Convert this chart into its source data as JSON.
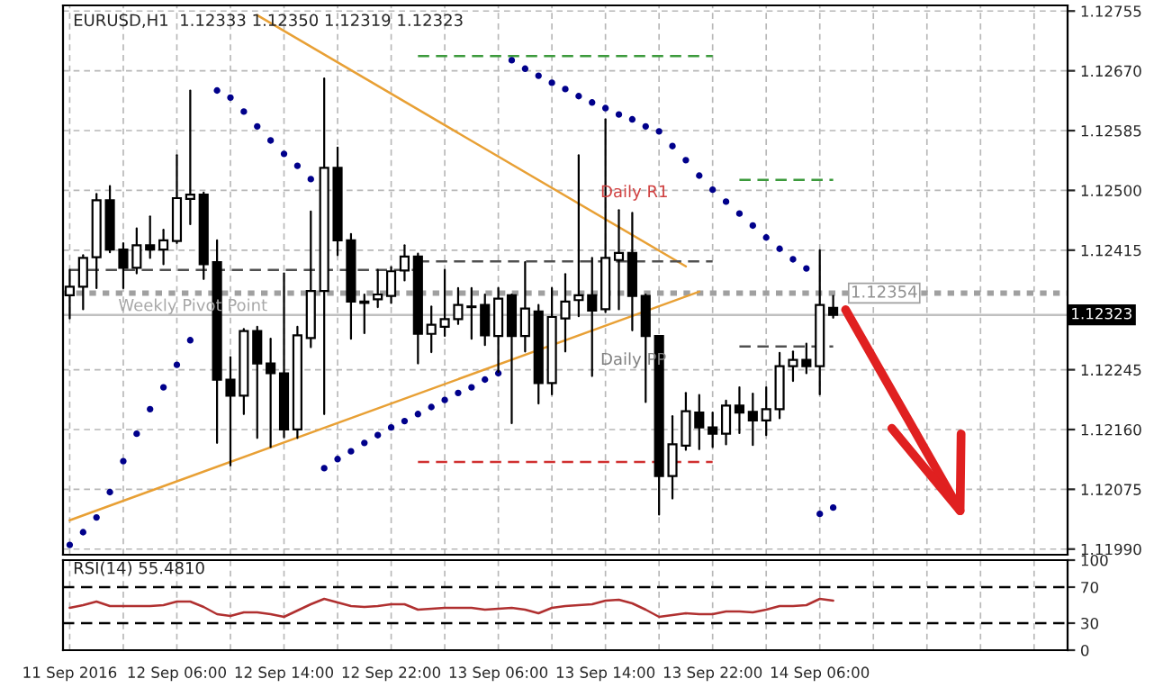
{
  "chart_data": [
    {
      "type": "candlestick",
      "title": "EURUSD,H1  1.12333 1.12350 1.12319 1.12323",
      "categories": [
        null,
        null,
        null,
        null,
        null,
        null,
        null,
        null,
        null,
        null,
        null,
        null,
        null,
        null,
        null,
        null,
        null,
        null,
        null,
        null,
        null,
        null,
        null,
        null,
        null,
        null,
        null,
        null,
        null,
        null,
        null,
        null,
        null,
        null,
        null,
        null,
        null,
        null,
        null,
        null,
        null,
        null,
        null,
        null,
        null,
        null,
        null,
        null,
        null,
        null,
        null,
        null,
        null,
        null,
        null,
        null,
        null,
        null,
        null,
        null,
        null,
        null,
        null,
        null,
        null,
        null,
        null,
        null,
        null,
        null,
        null,
        null,
        null,
        null,
        null
      ],
      "ohlc": [
        [
          1.12351,
          1.12387,
          1.12318,
          1.12363
        ],
        [
          1.12363,
          1.12408,
          1.12331,
          1.12404
        ],
        [
          1.12405,
          1.12495,
          1.12361,
          1.12486
        ],
        [
          1.12486,
          1.12506,
          1.12412,
          1.12416
        ],
        [
          1.12416,
          1.12425,
          1.12361,
          1.1239
        ],
        [
          1.1239,
          1.12446,
          1.12382,
          1.12422
        ],
        [
          1.12422,
          1.12463,
          1.12404,
          1.12416
        ],
        [
          1.12416,
          1.12444,
          1.12395,
          1.12429
        ],
        [
          1.12428,
          1.1255,
          1.12425,
          1.12489
        ],
        [
          1.12488,
          1.12642,
          1.12452,
          1.12494
        ],
        [
          1.12494,
          1.12497,
          1.12374,
          1.12395
        ],
        [
          1.12398,
          1.12429,
          1.12141,
          1.12231
        ],
        [
          1.12231,
          1.12263,
          1.12109,
          1.12208
        ],
        [
          1.12208,
          1.12303,
          1.12182,
          1.123
        ],
        [
          1.123,
          1.12306,
          1.12148,
          1.12254
        ],
        [
          1.12254,
          1.12289,
          1.12135,
          1.1224
        ],
        [
          1.1224,
          1.12382,
          1.12149,
          1.1216
        ],
        [
          1.1216,
          1.12306,
          1.12148,
          1.12294
        ],
        [
          1.1229,
          1.1247,
          1.12277,
          1.12357
        ],
        [
          1.12357,
          1.12659,
          1.12182,
          1.12532
        ],
        [
          1.12532,
          1.12561,
          1.12408,
          1.12429
        ],
        [
          1.12429,
          1.12438,
          1.12289,
          1.12342
        ],
        [
          1.12342,
          1.12352,
          1.12297,
          1.1234
        ],
        [
          1.12345,
          1.12387,
          1.12334,
          1.12352
        ],
        [
          1.1235,
          1.12391,
          1.1234,
          1.12385
        ],
        [
          1.12386,
          1.12422,
          1.12372,
          1.12406
        ],
        [
          1.12406,
          1.1241,
          1.12254,
          1.12296
        ],
        [
          1.12296,
          1.12335,
          1.1227,
          1.12309
        ],
        [
          1.12306,
          1.12387,
          1.12293,
          1.12317
        ],
        [
          1.12317,
          1.12361,
          1.1231,
          1.12337
        ],
        [
          1.12335,
          1.12361,
          1.12289,
          1.12334
        ],
        [
          1.12337,
          1.12352,
          1.1228,
          1.12294
        ],
        [
          1.12293,
          1.12361,
          1.12242,
          1.12346
        ],
        [
          1.12351,
          1.12352,
          1.12169,
          1.12293
        ],
        [
          1.12293,
          1.12398,
          1.12271,
          1.12332
        ],
        [
          1.12328,
          1.12337,
          1.12197,
          1.12226
        ],
        [
          1.12226,
          1.12361,
          1.1221,
          1.1232
        ],
        [
          1.12318,
          1.12381,
          1.12271,
          1.12342
        ],
        [
          1.12344,
          1.1255,
          1.12321,
          1.12351
        ],
        [
          1.12351,
          1.12404,
          1.12236,
          1.12329
        ],
        [
          1.12331,
          1.12601,
          1.12327,
          1.12404
        ],
        [
          1.12401,
          1.12472,
          1.12331,
          1.12411
        ],
        [
          1.12411,
          1.12468,
          1.12301,
          1.1235
        ],
        [
          1.1235,
          1.12352,
          1.12199,
          1.12293
        ],
        [
          1.12293,
          1.12293,
          1.12039,
          1.12094
        ],
        [
          1.12094,
          1.12179,
          1.12062,
          1.12139
        ],
        [
          1.12137,
          1.12212,
          1.12131,
          1.12186
        ],
        [
          1.12184,
          1.12209,
          1.12132,
          1.12163
        ],
        [
          1.12163,
          1.12184,
          1.12135,
          1.12154
        ],
        [
          1.12154,
          1.12201,
          1.12139,
          1.12194
        ],
        [
          1.12194,
          1.1222,
          1.12155,
          1.12184
        ],
        [
          1.12185,
          1.12211,
          1.12138,
          1.12173
        ],
        [
          1.12173,
          1.1222,
          1.12152,
          1.12189
        ],
        [
          1.12189,
          1.12269,
          1.12176,
          1.1225
        ],
        [
          1.1225,
          1.12271,
          1.12229,
          1.12259
        ],
        [
          1.12259,
          1.12282,
          1.1224,
          1.1225
        ],
        [
          1.1225,
          1.12415,
          1.1221,
          1.12337
        ],
        [
          1.12333,
          1.1235,
          1.12319,
          1.12323
        ],
        null,
        null,
        null,
        null,
        null,
        null,
        null,
        null,
        null,
        null,
        null,
        null,
        null,
        null,
        null,
        null,
        null
      ],
      "series": [
        {
          "type": "scatter",
          "color": "#00008b",
          "marker": "circle",
          "values": [
            1.11996,
            1.12014,
            1.12035,
            1.12071,
            1.12115,
            1.12154,
            1.12189,
            1.1222,
            1.12252,
            1.12287,
            null,
            1.12642,
            1.12632,
            1.12612,
            1.12591,
            1.12571,
            1.12552,
            1.12535,
            1.12516,
            1.12105,
            1.12118,
            1.12129,
            1.12141,
            1.12152,
            1.12163,
            1.12172,
            1.12182,
            1.12192,
            1.12202,
            1.12212,
            1.1222,
            1.12231,
            1.1224,
            1.12685,
            1.12673,
            1.12663,
            1.12653,
            1.12644,
            1.12634,
            1.12625,
            1.12617,
            1.12608,
            1.12601,
            1.12591,
            1.12584,
            1.12563,
            1.12543,
            1.12521,
            1.12501,
            1.12484,
            1.12467,
            1.1245,
            1.12433,
            1.12417,
            1.12402,
            1.12389,
            1.1204,
            1.12049,
            null,
            null,
            null,
            null,
            null,
            null,
            null,
            null,
            null,
            null,
            null,
            null,
            null,
            null,
            null,
            null,
            null
          ]
        },
        {
          "type": "line",
          "color": "#e8a035",
          "line_style": "solid",
          "values": [
            null,
            null,
            null,
            null,
            null,
            null,
            null,
            null,
            null,
            null,
            null,
            null,
            null,
            null,
            1.12749,
            null,
            null,
            null,
            null,
            null,
            null,
            null,
            null,
            null,
            null,
            null,
            null,
            null,
            null,
            null,
            null,
            null,
            null,
            null,
            null,
            null,
            null,
            null,
            null,
            null,
            null,
            null,
            null,
            null,
            null,
            null,
            1.12392,
            null,
            null,
            null,
            null,
            null,
            null,
            null,
            null,
            null,
            null,
            null,
            null,
            null,
            null,
            null,
            null,
            null,
            null,
            null,
            null,
            null,
            null,
            null,
            null,
            null,
            null,
            null,
            null
          ]
        },
        {
          "type": "line",
          "color": "#e8a035",
          "line_style": "solid",
          "values": [
            1.12031,
            null,
            null,
            null,
            null,
            null,
            null,
            null,
            null,
            null,
            null,
            null,
            null,
            null,
            null,
            null,
            null,
            null,
            null,
            null,
            null,
            null,
            null,
            null,
            null,
            null,
            null,
            null,
            null,
            null,
            null,
            null,
            null,
            null,
            null,
            null,
            null,
            null,
            null,
            null,
            null,
            null,
            null,
            null,
            null,
            null,
            null,
            1.12356,
            null,
            null,
            null,
            null,
            null,
            null,
            null,
            null,
            null,
            null,
            null,
            null,
            null,
            null,
            null,
            null,
            null,
            null,
            null,
            null,
            null,
            null,
            null,
            null,
            null,
            null,
            null
          ]
        },
        {
          "type": "line",
          "color": "#505050",
          "line_style": "dashed",
          "values": [
            1.12387,
            null,
            null,
            null,
            null,
            null,
            null,
            null,
            null,
            null,
            null,
            null,
            null,
            null,
            null,
            null,
            null,
            null,
            null,
            null,
            null,
            null,
            null,
            null,
            null,
            null,
            1.12387,
            null,
            null,
            null,
            null,
            null,
            null,
            null,
            null,
            null,
            null,
            null,
            null,
            null,
            null,
            null,
            null,
            null,
            null,
            null,
            null,
            null,
            null,
            null,
            null,
            null,
            null,
            null,
            null,
            null,
            null,
            null,
            null,
            null,
            null,
            null,
            null,
            null,
            null,
            null,
            null,
            null,
            null,
            null,
            null,
            null,
            null,
            null,
            null
          ]
        },
        {
          "type": "line",
          "color": "#505050",
          "line_style": "dashed",
          "values": [
            null,
            null,
            null,
            null,
            null,
            null,
            null,
            null,
            null,
            null,
            null,
            null,
            null,
            null,
            null,
            null,
            null,
            null,
            null,
            null,
            null,
            null,
            null,
            null,
            null,
            null,
            1.12399,
            null,
            null,
            null,
            null,
            null,
            null,
            null,
            null,
            null,
            null,
            null,
            null,
            null,
            null,
            null,
            null,
            null,
            null,
            null,
            null,
            null,
            1.12399,
            null,
            null,
            null,
            null,
            null,
            null,
            null,
            null,
            null,
            null,
            null,
            null,
            null,
            null,
            null,
            null,
            null,
            null,
            null,
            null,
            null,
            null,
            null,
            null,
            null,
            null
          ]
        },
        {
          "type": "line",
          "color": "#3c9a3c",
          "line_style": "dashed",
          "values": [
            null,
            null,
            null,
            null,
            null,
            null,
            null,
            null,
            null,
            null,
            null,
            null,
            null,
            null,
            null,
            null,
            null,
            null,
            null,
            null,
            null,
            null,
            null,
            null,
            null,
            null,
            1.12691,
            null,
            null,
            null,
            null,
            null,
            null,
            null,
            null,
            null,
            null,
            null,
            null,
            null,
            null,
            null,
            null,
            null,
            null,
            null,
            null,
            null,
            1.12691,
            null,
            null,
            null,
            null,
            null,
            null,
            null,
            null,
            null,
            null,
            null,
            null,
            null,
            null,
            null,
            null,
            null,
            null,
            null,
            null,
            null,
            null,
            null,
            null,
            null,
            null
          ]
        },
        {
          "type": "line",
          "color": "#d03030",
          "line_style": "dashed",
          "values": [
            null,
            null,
            null,
            null,
            null,
            null,
            null,
            null,
            null,
            null,
            null,
            null,
            null,
            null,
            null,
            null,
            null,
            null,
            null,
            null,
            null,
            null,
            null,
            null,
            null,
            null,
            1.12114,
            null,
            null,
            null,
            null,
            null,
            null,
            null,
            null,
            null,
            null,
            null,
            null,
            null,
            null,
            null,
            null,
            null,
            null,
            null,
            null,
            null,
            1.12114,
            null,
            null,
            null,
            null,
            null,
            null,
            null,
            null,
            null,
            null,
            null,
            null,
            null,
            null,
            null,
            null,
            null,
            null,
            null,
            null,
            null,
            null,
            null,
            null,
            null,
            null
          ]
        },
        {
          "type": "line",
          "color": "#3c9a3c",
          "line_style": "dashed",
          "values": [
            null,
            null,
            null,
            null,
            null,
            null,
            null,
            null,
            null,
            null,
            null,
            null,
            null,
            null,
            null,
            null,
            null,
            null,
            null,
            null,
            null,
            null,
            null,
            null,
            null,
            null,
            null,
            null,
            null,
            null,
            null,
            null,
            null,
            null,
            null,
            null,
            null,
            null,
            null,
            null,
            null,
            null,
            null,
            null,
            null,
            null,
            null,
            null,
            null,
            null,
            1.12515,
            null,
            null,
            null,
            null,
            null,
            null,
            1.12515,
            null,
            null,
            null,
            null,
            null,
            null,
            null,
            null,
            null,
            null,
            null,
            null,
            null,
            null,
            null,
            null,
            null
          ]
        },
        {
          "type": "line",
          "color": "#505050",
          "line_style": "dashed",
          "values": [
            null,
            null,
            null,
            null,
            null,
            null,
            null,
            null,
            null,
            null,
            null,
            null,
            null,
            null,
            null,
            null,
            null,
            null,
            null,
            null,
            null,
            null,
            null,
            null,
            null,
            null,
            null,
            null,
            null,
            null,
            null,
            null,
            null,
            null,
            null,
            null,
            null,
            null,
            null,
            null,
            null,
            null,
            null,
            null,
            null,
            null,
            null,
            null,
            null,
            null,
            1.12278,
            null,
            null,
            null,
            null,
            null,
            null,
            1.12278,
            null,
            null,
            null,
            null,
            null,
            null,
            null,
            null,
            null,
            null,
            null,
            null,
            null,
            null,
            null,
            null,
            null
          ]
        }
      ],
      "ref_lines": [
        {
          "axis": "y",
          "value": 1.12354,
          "label": "1.12354",
          "color": "#a0a0a0",
          "line_style": "dotted"
        },
        {
          "axis": "y",
          "value": 1.12323,
          "label": "1.12323",
          "color": "#c0c0c0",
          "line_style": "solid"
        }
      ],
      "annotations": [
        "Weekly Pivot Point",
        "Daily R1",
        "Daily PP"
      ],
      "ylim": [
        1.11982,
        1.12763
      ],
      "yticks": [
        1.12755,
        {
          "value": 1.1267,
          "label": "1.12670"
        },
        1.12585,
        {
          "value": 1.125,
          "label": "1.12500"
        },
        1.12415,
        1.12245,
        {
          "value": 1.1216,
          "label": "1.12160"
        },
        1.12075,
        {
          "value": 1.1199,
          "label": "1.11990"
        }
      ],
      "grid": true,
      "tick_labels": "y"
    },
    {
      "type": "line",
      "title": "RSI(14) 55.4810",
      "categories": [
        "11 Sep 2016",
        null,
        null,
        null,
        null,
        null,
        null,
        null,
        "12 Sep 06:00",
        null,
        null,
        null,
        null,
        null,
        null,
        null,
        "12 Sep 14:00",
        null,
        null,
        null,
        null,
        null,
        null,
        null,
        "12 Sep 22:00",
        null,
        null,
        null,
        null,
        null,
        null,
        null,
        "13 Sep 06:00",
        null,
        null,
        null,
        null,
        null,
        null,
        null,
        "13 Sep 14:00",
        null,
        null,
        null,
        null,
        null,
        null,
        null,
        "13 Sep 22:00",
        null,
        null,
        null,
        null,
        null,
        null,
        null,
        "14 Sep 06:00",
        null,
        null,
        null,
        null,
        null,
        null,
        null,
        null,
        null,
        null,
        null,
        null,
        null,
        null,
        null,
        null,
        null,
        null
      ],
      "series": [
        {
          "color": "#b03030",
          "values": [
            47,
            50,
            54,
            49,
            49,
            49,
            49,
            50,
            54,
            54,
            48,
            40,
            38,
            42,
            42,
            40,
            37,
            44,
            51,
            57,
            53,
            49,
            48,
            49,
            51,
            51,
            45,
            46,
            47,
            47,
            47,
            45,
            46,
            47,
            45,
            41,
            47,
            49,
            50,
            51,
            55,
            56,
            52,
            45,
            37,
            39,
            41,
            40,
            40,
            43,
            43,
            42,
            45,
            49,
            49,
            50,
            57,
            55,
            null,
            null,
            null,
            null,
            null,
            null,
            null,
            null,
            null,
            null,
            null,
            null,
            null,
            null,
            null,
            null,
            null
          ]
        }
      ],
      "ref_lines": [
        {
          "axis": "y",
          "value": 70,
          "color": "#000000",
          "line_style": "dashed"
        },
        {
          "axis": "y",
          "value": 30,
          "color": "#000000",
          "line_style": "dashed"
        }
      ],
      "ylim": [
        0,
        100
      ],
      "yticks": [
        0,
        30,
        70,
        100
      ],
      "grid": "x"
    }
  ]
}
